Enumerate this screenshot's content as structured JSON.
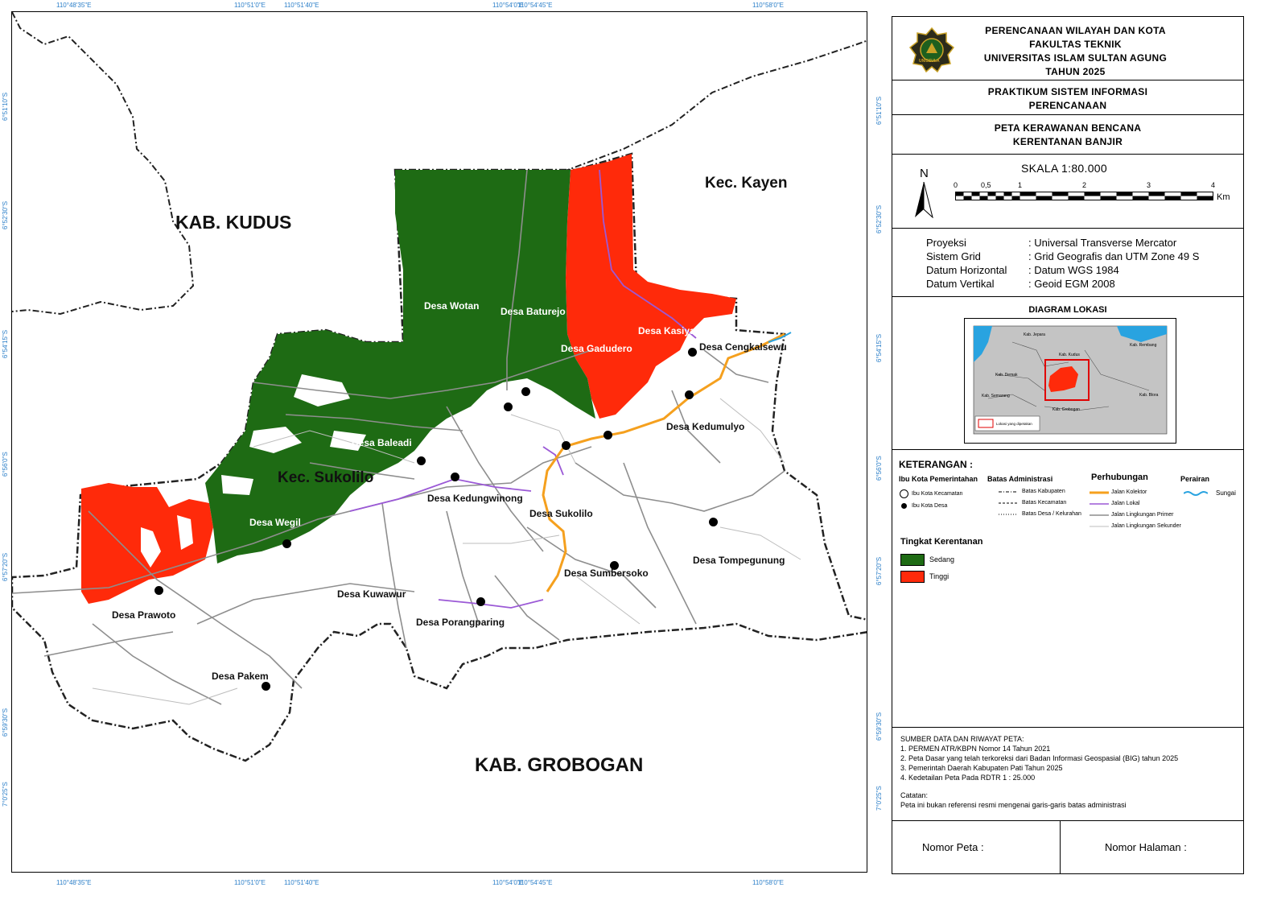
{
  "map": {
    "regions": {
      "kudus": "KAB. KUDUS",
      "kayen": "Kec. Kayen",
      "sukolilo": "Kec. Sukolilo",
      "grobogan": "KAB. GROBOGAN"
    },
    "villages": [
      "Desa Wotan",
      "Desa Baturejo",
      "Desa Kasiyan",
      "Desa Gadudero",
      "Desa Cengkalsewu",
      "Desa Kedumulyo",
      "Desa Baleadi",
      "Desa Kedungwinong",
      "Desa Sukolilo",
      "Desa Wegil",
      "Desa Tompegunung",
      "Desa Sumbersoko",
      "Desa Kuwawur",
      "Desa Prawoto",
      "Desa Porangparing",
      "Desa Pakem"
    ],
    "coords_top": [
      "110°48'35\"E",
      "110°51'0\"E",
      "110°51'40\"E",
      "110°54'0\"E",
      "110°54'45\"E",
      "110°58'0\"E"
    ],
    "coords_bottom": [
      "110°48'35\"E",
      "110°51'0\"E",
      "110°51'40\"E",
      "110°54'0\"E",
      "110°54'45\"E",
      "110°58'0\"E"
    ],
    "coords_side": [
      "6°51'10\"S",
      "6°52'30\"S",
      "6°54'15\"S",
      "6°56'0\"S",
      "6°57'20\"S",
      "6°59'30\"S",
      "7°0'25\"S"
    ],
    "colors": {
      "sedang": "#1e6b14",
      "tinggi": "#ff2a0a",
      "kolektor": "#f5a01e",
      "lokal": "#9b59d6",
      "sungai": "#29a3e0"
    }
  },
  "panel": {
    "header": [
      "PERENCANAAN WILAYAH DAN KOTA",
      "FAKULTAS TEKNIK",
      "UNIVERSITAS ISLAM SULTAN AGUNG",
      "TAHUN 2025"
    ],
    "logo_text": "UNISSULA",
    "course": [
      "PRAKTIKUM SISTEM INFORMASI",
      "PERENCANAAN"
    ],
    "map_title": [
      "PETA KERAWANAN BENCANA",
      "KERENTANAN BANJIR"
    ],
    "north": "N",
    "scale_title": "SKALA 1:80.000",
    "scale_ticks": [
      "0",
      "0,5",
      "1",
      "2",
      "3",
      "4"
    ],
    "scale_unit": "Km",
    "projection": [
      {
        "label": "Proyeksi",
        "value": ": Universal Transverse Mercator"
      },
      {
        "label": "Sistem Grid",
        "value": ": Grid Geografis dan UTM Zone 49 S"
      },
      {
        "label": "Datum Horizontal",
        "value": ": Datum WGS 1984"
      },
      {
        "label": "Datum Vertikal",
        "value": ": Geoid EGM 2008"
      }
    ],
    "diagram_title": "DIAGRAM LOKASI",
    "diagram_labels": [
      "Kab. Jepara",
      "Kab. Kudus",
      "Kab. Demak",
      "Kab. Semarang",
      "Kab. Grobogan",
      "Kab. Blora",
      "Kab. Rembang"
    ],
    "diagram_legend": "Lokasi yang dipetakan",
    "legend": {
      "title": "KETERANGAN :",
      "ibukota_title": "Ibu Kota Pemerintahan",
      "ibukota_items": [
        "Ibu Kota Kecamatan",
        "Ibu Kota Desa"
      ],
      "batas_title": "Batas Administrasi",
      "batas_items": [
        "Batas Kabupaten",
        "Batas Kecamatan",
        "Batas Desa / Kelurahan"
      ],
      "perhubungan_title": "Perhubungan",
      "perhubungan_items": [
        "Jalan Kolektor",
        "Jalan Lokal",
        "Jalan Lingkungan Primer",
        "Jalan Lingkungan Sekunder"
      ],
      "perairan_title": "Perairan",
      "perairan_items": [
        "Sungai"
      ],
      "tingkat_title": "Tingkat Kerentanan",
      "tingkat_items": [
        {
          "label": "Sedang",
          "color": "#1e6b14"
        },
        {
          "label": "Tinggi",
          "color": "#ff2a0a"
        }
      ]
    },
    "sources": {
      "title": "SUMBER DATA DAN RIWAYAT PETA:",
      "items": [
        "1. PERMEN ATR/KBPN Nomor 14 Tahun 2021",
        "2. Peta Dasar yang telah terkoreksi dari Badan Informasi Geospasial (BIG) tahun 2025",
        "3. Pemerintah Daerah Kabupaten Pati Tahun 2025",
        "4. Kedetailan Peta Pada RDTR 1 : 25.000"
      ],
      "note_title": "Catatan:",
      "note": "Peta ini bukan referensi resmi mengenai garis-garis batas administrasi"
    },
    "nomor_peta": "Nomor Peta :",
    "nomor_halaman": "Nomor Halaman :"
  }
}
